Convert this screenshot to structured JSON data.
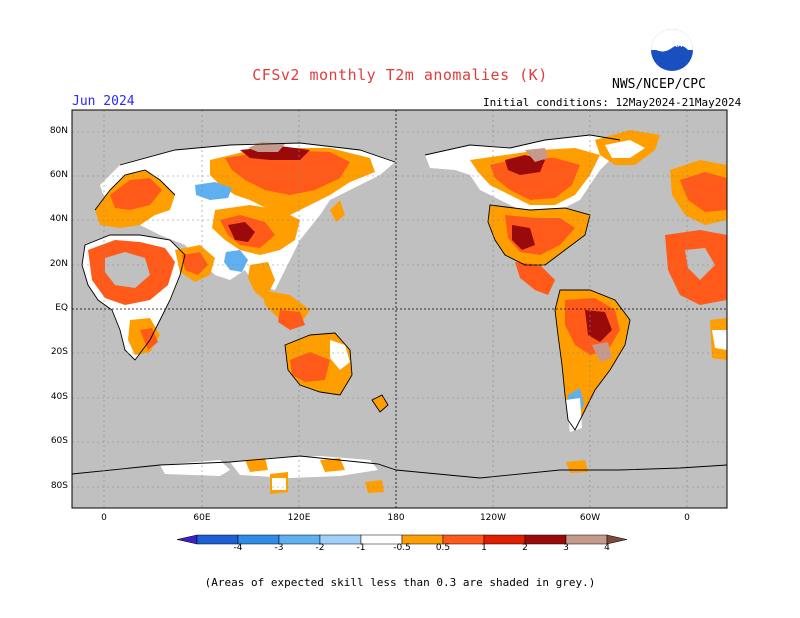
{
  "title": "CFSv2 monthly T2m anomalies (K)",
  "agency": "NWS/NCEP/CPC",
  "month": "Jun 2024",
  "initial_conditions": "Initial conditions: 12May2024-21May2024",
  "footnote": "(Areas of expected skill less than 0.3 are shaded in grey.)",
  "logo_text": "NOAA",
  "lat_labels": [
    "80N",
    "60N",
    "40N",
    "20N",
    "EQ",
    "20S",
    "40S",
    "60S",
    "80S"
  ],
  "lon_labels": [
    "0",
    "60E",
    "120E",
    "180",
    "120W",
    "60W",
    "0"
  ],
  "colorbar": {
    "labels": [
      "-4",
      "-3",
      "-2",
      "-1",
      "-0.5",
      "0.5",
      "1",
      "2",
      "3",
      "4"
    ],
    "colors": [
      "#3b22c8",
      "#1e5fd6",
      "#2e8be6",
      "#5fb0f0",
      "#9fd0fa",
      "#ffffff",
      "#ff9e00",
      "#ff5a1a",
      "#e01e00",
      "#9b0a0a",
      "#c59a8c",
      "#7a4a3a"
    ]
  },
  "colors": {
    "ocean_grey": "#c0c0c0",
    "title_red": "#e03c3c",
    "month_blue": "#2a2aff"
  }
}
